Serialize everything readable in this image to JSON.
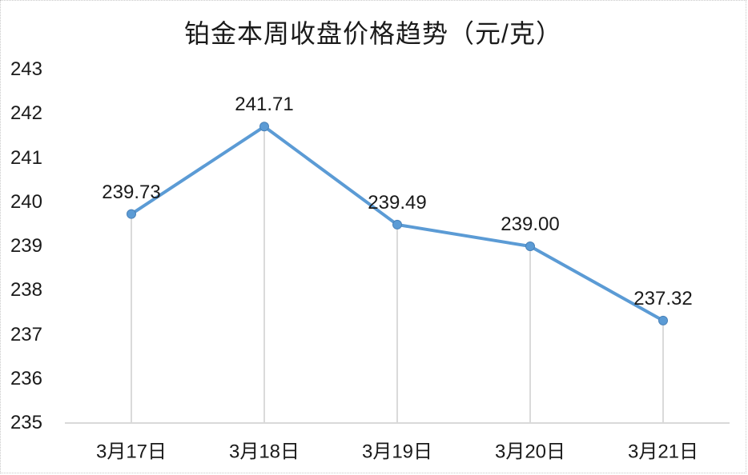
{
  "chart_data": {
    "type": "line",
    "title": "铂金本周收盘价格趋势（元/克）",
    "categories": [
      "3月17日",
      "3月18日",
      "3月19日",
      "3月20日",
      "3月21日"
    ],
    "values": [
      239.73,
      241.71,
      239.49,
      239.0,
      237.32
    ],
    "data_labels": [
      "239.73",
      "241.71",
      "239.49",
      "239.00",
      "237.32"
    ],
    "y_ticks": [
      235,
      236,
      237,
      238,
      239,
      240,
      241,
      242,
      243
    ],
    "ylim": [
      235,
      243
    ],
    "xlabel": "",
    "ylabel": "",
    "grid": false,
    "legend": "none",
    "colors": {
      "line": "#5B9BD5",
      "marker_fill": "#5B9BD5",
      "marker_stroke": "#4A82B8",
      "axis_line": "#D9D9D9",
      "drop_line": "#DADADA",
      "text": "#1a1a1a"
    }
  }
}
